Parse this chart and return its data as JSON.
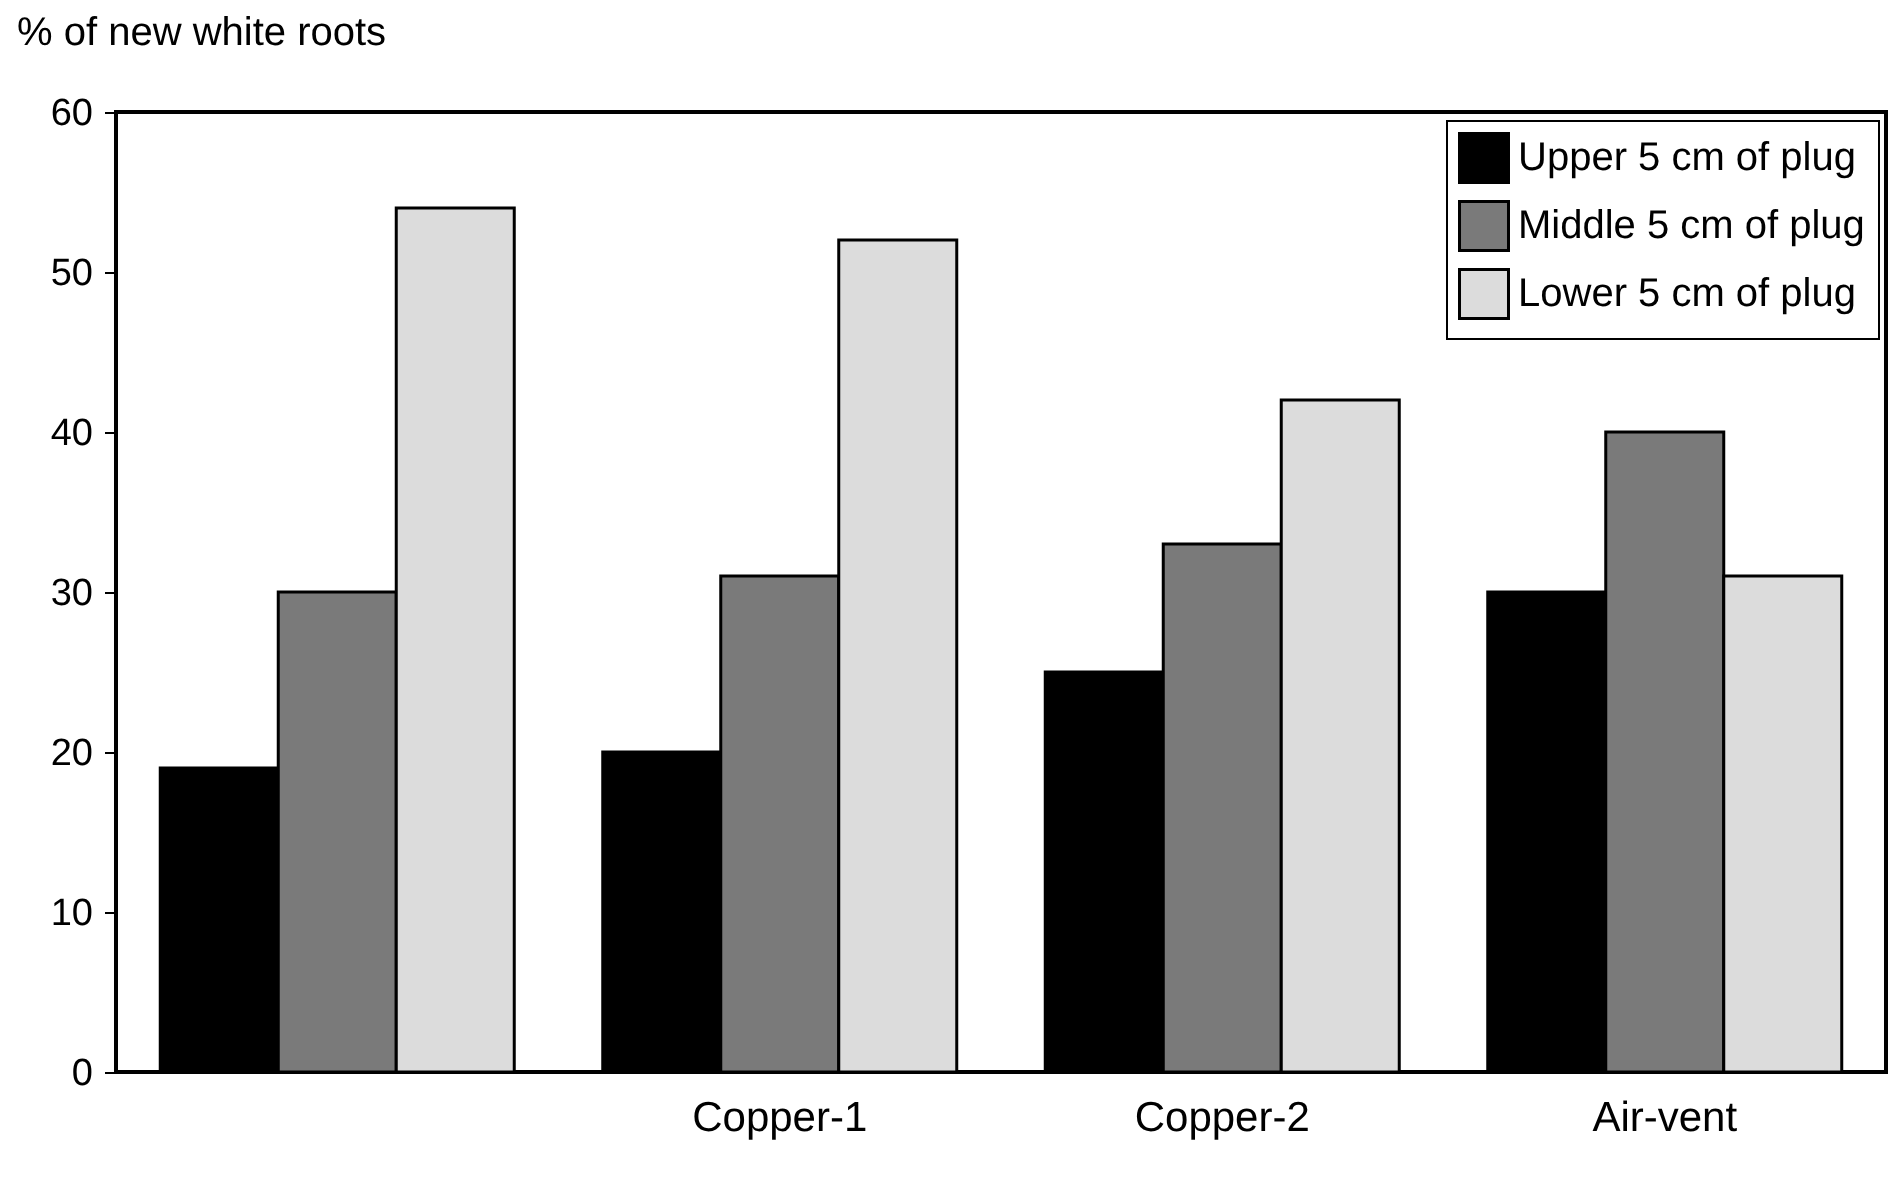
{
  "chart_data": {
    "type": "bar",
    "ylabel": "% of new white roots",
    "categories": [
      null,
      "Copper-1",
      "Copper-2",
      "Air-vent"
    ],
    "series": [
      {
        "name": "Upper 5 cm of plug",
        "color": "#000000",
        "values": [
          19,
          20,
          25,
          30
        ]
      },
      {
        "name": "Middle 5 cm of plug",
        "color": "#7a7a7a",
        "values": [
          30,
          31,
          33,
          40
        ]
      },
      {
        "name": "Lower 5 cm of plug",
        "color": "#dcdcdc",
        "values": [
          54,
          52,
          42,
          31
        ]
      }
    ],
    "ylim": [
      0,
      60
    ],
    "yticks": [
      0,
      10,
      20,
      30,
      40,
      50,
      60
    ],
    "legend": "top right"
  }
}
